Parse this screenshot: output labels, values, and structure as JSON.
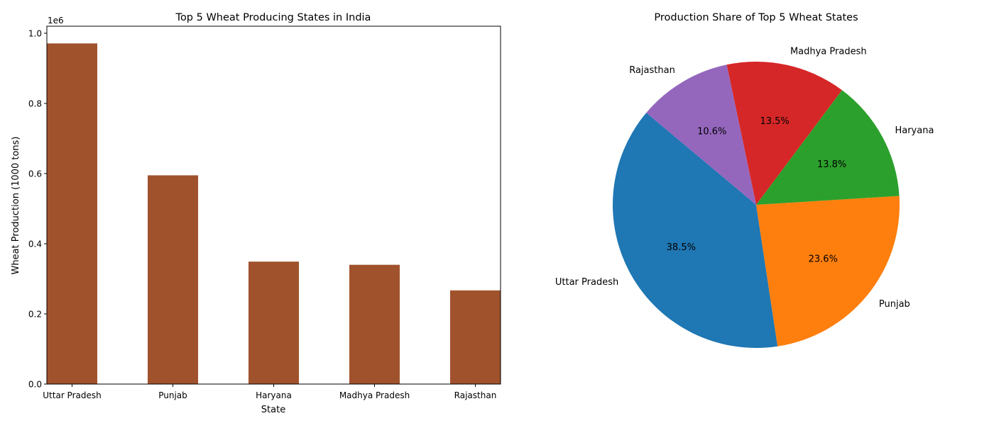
{
  "chart_data": [
    {
      "type": "bar",
      "title": "Top 5 Wheat Producing States in India",
      "xlabel": "State",
      "ylabel": "Wheat Production (1000 tons)",
      "y_scale_label": "1e6",
      "ylim": [
        0,
        1.02
      ],
      "yticks": [
        0.0,
        0.2,
        0.4,
        0.6,
        0.8,
        1.0
      ],
      "ytick_labels": [
        "0.0",
        "0.2",
        "0.4",
        "0.6",
        "0.8",
        "1.0"
      ],
      "categories": [
        "Uttar Pradesh",
        "Punjab",
        "Haryana",
        "Madhya Pradesh",
        "Rajasthan"
      ],
      "values": [
        0.971,
        0.595,
        0.349,
        0.34,
        0.267
      ],
      "bar_color": "#a0522d",
      "grid": false
    },
    {
      "type": "pie",
      "title": "Production Share of Top 5 Wheat States",
      "labels": [
        "Uttar Pradesh",
        "Punjab",
        "Haryana",
        "Madhya Pradesh",
        "Rajasthan"
      ],
      "values": [
        38.5,
        23.6,
        13.8,
        13.5,
        10.6
      ],
      "pct_labels": [
        "38.5%",
        "23.6%",
        "13.8%",
        "13.5%",
        "10.6%"
      ],
      "colors": [
        "#1f77b4",
        "#ff7f0e",
        "#2ca02c",
        "#d62728",
        "#9467bd"
      ],
      "start_angle": 140
    }
  ]
}
